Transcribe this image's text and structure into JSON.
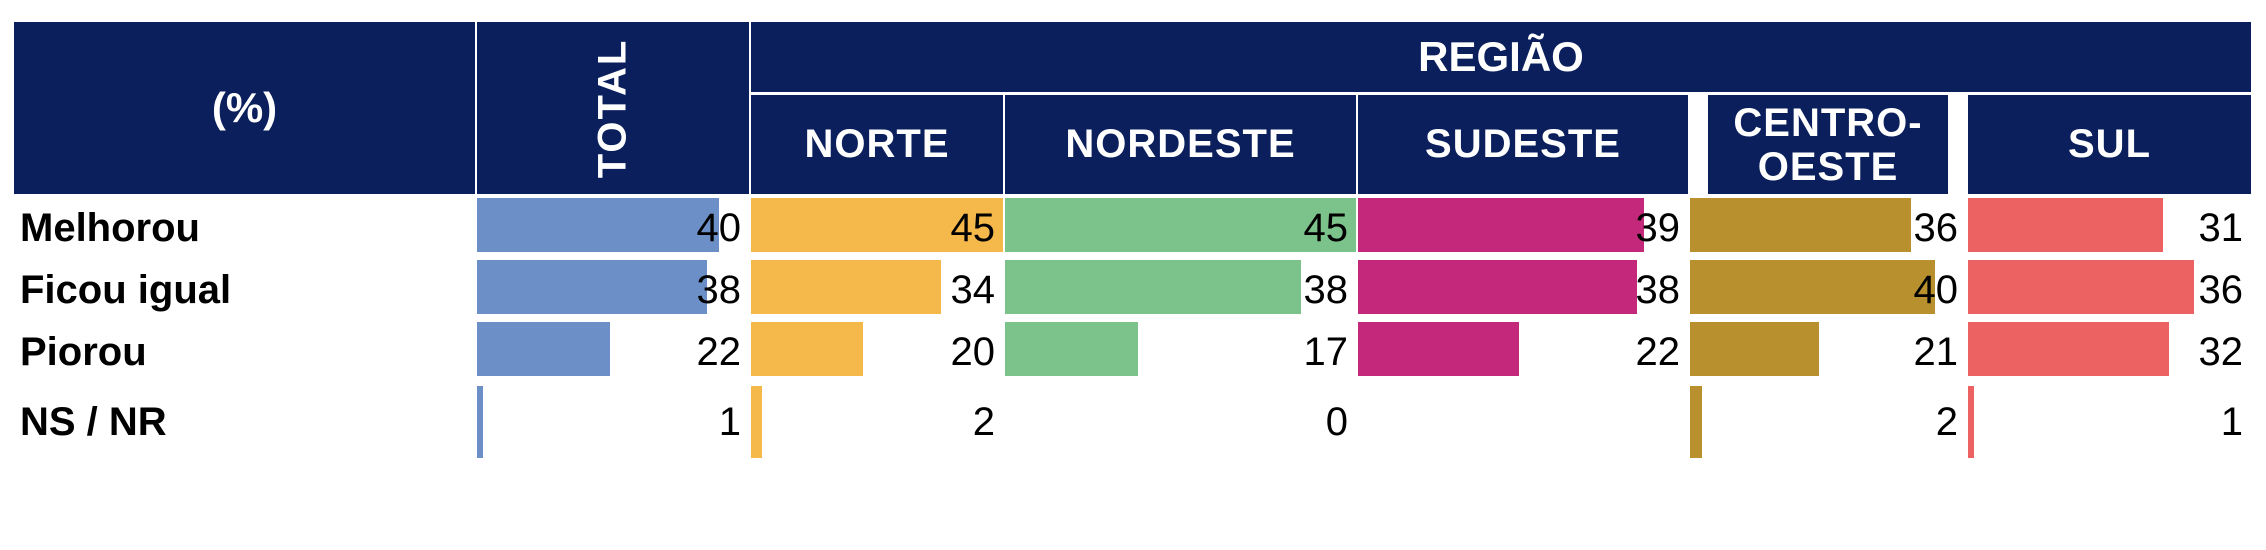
{
  "chart_data": {
    "type": "table",
    "header": {
      "unit_label": "(%)",
      "total_label": "TOTAL",
      "group_label": "REGIÃO"
    },
    "columns": [
      {
        "key": "total",
        "label": "TOTAL",
        "color": "#6b8fc6"
      },
      {
        "key": "norte",
        "label": "NORTE",
        "color": "#f4b94a"
      },
      {
        "key": "nordeste",
        "label": "NORDESTE",
        "color": "#7cc28b"
      },
      {
        "key": "sudeste",
        "label": "SUDESTE",
        "color": "#c4287a"
      },
      {
        "key": "centro_oeste",
        "label": "CENTRO-OESTE",
        "color": "#b8902e"
      },
      {
        "key": "sul",
        "label": "SUL",
        "color": "#ec6262"
      }
    ],
    "rows": [
      {
        "label": "Melhorou",
        "values": [
          40,
          45,
          45,
          39,
          36,
          31
        ]
      },
      {
        "label": "Ficou igual",
        "values": [
          38,
          34,
          38,
          38,
          40,
          36
        ]
      },
      {
        "label": "Piorou",
        "values": [
          22,
          20,
          17,
          22,
          21,
          32
        ]
      },
      {
        "label": "NS / NR",
        "values": [
          1,
          2,
          0,
          null,
          2,
          1
        ]
      }
    ],
    "value_max": 45
  }
}
